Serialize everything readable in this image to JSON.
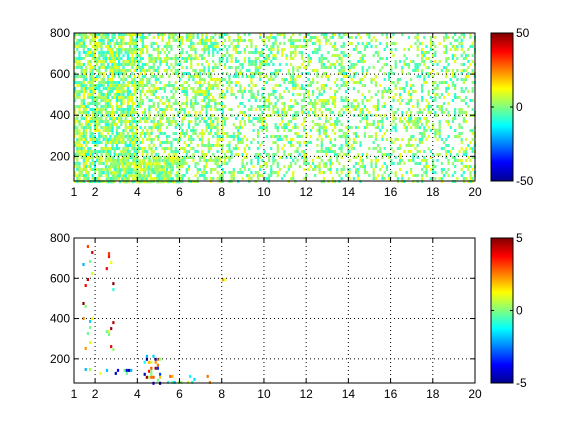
{
  "chart_data": [
    {
      "type": "heatmap",
      "title": "",
      "xlabel": "",
      "ylabel": "",
      "xlim": [
        1,
        20
      ],
      "ylim": [
        80,
        800
      ],
      "x_ticks": [
        "1",
        "2",
        "4",
        "6",
        "8",
        "10",
        "12",
        "14",
        "16",
        "18",
        "20"
      ],
      "y_ticks": [
        "200",
        "400",
        "600",
        "800"
      ],
      "grid": true,
      "colormap": "jet",
      "colorbar": {
        "range": [
          -50,
          50
        ],
        "ticks": [
          "50",
          "0",
          "-50"
        ]
      },
      "clusters": [
        {
          "x": [
            1.0,
            4.0
          ],
          "y": [
            80,
            800
          ],
          "density": 0.72,
          "value_range": [
            -12,
            14
          ]
        },
        {
          "x": [
            4.0,
            8.0
          ],
          "y": [
            80,
            800
          ],
          "density": 0.5,
          "value_range": [
            -10,
            12
          ]
        },
        {
          "x": [
            8.0,
            14.0
          ],
          "y": [
            80,
            800
          ],
          "density": 0.38,
          "value_range": [
            -10,
            12
          ]
        },
        {
          "x": [
            14.0,
            20.0
          ],
          "y": [
            80,
            800
          ],
          "density": 0.3,
          "value_range": [
            -10,
            12
          ]
        },
        {
          "x": [
            2.5,
            6.0
          ],
          "y": [
            80,
            200
          ],
          "density": 0.75,
          "value_range": [
            -8,
            12
          ]
        }
      ]
    },
    {
      "type": "heatmap",
      "title": "",
      "xlabel": "",
      "ylabel": "",
      "xlim": [
        1,
        20
      ],
      "ylim": [
        80,
        800
      ],
      "x_ticks": [
        "1",
        "2",
        "4",
        "6",
        "8",
        "10",
        "12",
        "14",
        "16",
        "18",
        "20"
      ],
      "y_ticks": [
        "200",
        "400",
        "600",
        "800"
      ],
      "grid": true,
      "colormap": "jet",
      "colorbar": {
        "range": [
          -5,
          5
        ],
        "ticks": [
          "5",
          "0",
          "-5"
        ]
      },
      "clusters": [
        {
          "x": [
            1.4,
            1.9
          ],
          "y": [
            150,
            780
          ],
          "density": 0.1,
          "value_range": [
            -4,
            5
          ]
        },
        {
          "x": [
            2.5,
            2.9
          ],
          "y": [
            250,
            760
          ],
          "density": 0.1,
          "value_range": [
            -3,
            5
          ]
        },
        {
          "x": [
            2.2,
            3.8
          ],
          "y": [
            110,
            150
          ],
          "density": 0.25,
          "value_range": [
            -5,
            2
          ]
        },
        {
          "x": [
            4.3,
            5.1
          ],
          "y": [
            80,
            220
          ],
          "density": 0.35,
          "value_range": [
            -5,
            5
          ]
        },
        {
          "x": [
            5.2,
            7.5
          ],
          "y": [
            85,
            120
          ],
          "density": 0.2,
          "value_range": [
            -2,
            3
          ]
        },
        {
          "x": [
            7.9,
            8.3
          ],
          "y": [
            580,
            600
          ],
          "density": 0.5,
          "value_range": [
            1,
            3
          ]
        }
      ]
    }
  ]
}
